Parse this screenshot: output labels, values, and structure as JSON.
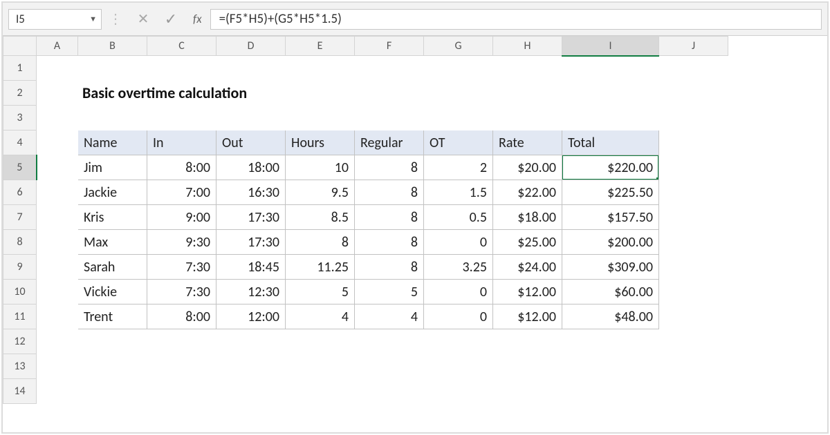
{
  "formula_bar": {
    "cell_ref": "I5",
    "formula": "=(F5*H5)+(G5*H5*1.5)",
    "fx_label": "fx"
  },
  "columns": [
    "A",
    "B",
    "C",
    "D",
    "E",
    "F",
    "G",
    "H",
    "I",
    "J"
  ],
  "selected_col": "I",
  "selected_row": "5",
  "title": "Basic overtime calculation",
  "table": {
    "headers": [
      "Name",
      "In",
      "Out",
      "Hours",
      "Regular",
      "OT",
      "Rate",
      "Total"
    ],
    "rows": [
      {
        "name": "Jim",
        "in": "8:00",
        "out": "18:00",
        "hours": "10",
        "regular": "8",
        "ot": "2",
        "rate": "$20.00",
        "total": "$220.00"
      },
      {
        "name": "Jackie",
        "in": "7:00",
        "out": "16:30",
        "hours": "9.5",
        "regular": "8",
        "ot": "1.5",
        "rate": "$22.00",
        "total": "$225.50"
      },
      {
        "name": "Kris",
        "in": "9:00",
        "out": "17:30",
        "hours": "8.5",
        "regular": "8",
        "ot": "0.5",
        "rate": "$18.00",
        "total": "$157.50"
      },
      {
        "name": "Max",
        "in": "9:30",
        "out": "17:30",
        "hours": "8",
        "regular": "8",
        "ot": "0",
        "rate": "$25.00",
        "total": "$200.00"
      },
      {
        "name": "Sarah",
        "in": "7:30",
        "out": "18:45",
        "hours": "11.25",
        "regular": "8",
        "ot": "3.25",
        "rate": "$24.00",
        "total": "$309.00"
      },
      {
        "name": "Vickie",
        "in": "7:30",
        "out": "12:30",
        "hours": "5",
        "regular": "5",
        "ot": "0",
        "rate": "$12.00",
        "total": "$60.00"
      },
      {
        "name": "Trent",
        "in": "8:00",
        "out": "12:00",
        "hours": "4",
        "regular": "4",
        "ot": "0",
        "rate": "$12.00",
        "total": "$48.00"
      }
    ]
  },
  "row_numbers": [
    "1",
    "2",
    "3",
    "4",
    "5",
    "6",
    "7",
    "8",
    "9",
    "10",
    "11",
    "12",
    "13",
    "14"
  ],
  "colors": {
    "header_fill": "#e2e8f3",
    "selection_green": "#107c41",
    "panel_gray": "#f2f2f2",
    "grid_border": "#c2c2c2"
  }
}
